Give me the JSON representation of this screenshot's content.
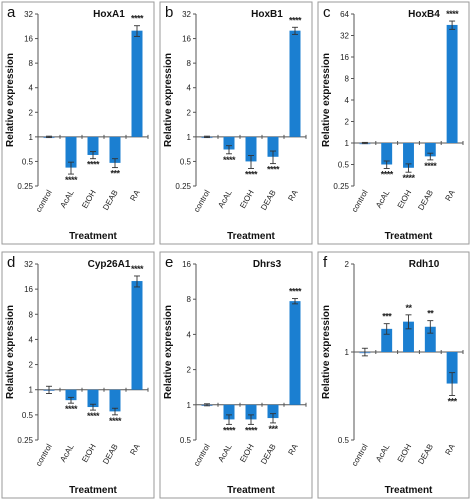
{
  "colors": {
    "bar": "#1b7fd1",
    "control_bar": "#5a8fc8",
    "frame": "#9a9a9a"
  },
  "chart_data": [
    {
      "type": "bar",
      "panel": "a",
      "title": "HoxA1",
      "ylabel": "Relative expression",
      "xlabel": "Treatment",
      "yscale": "log2",
      "ylim": [
        0.25,
        32
      ],
      "yticks": [
        0.25,
        0.5,
        1,
        2,
        4,
        8,
        16,
        32
      ],
      "ytick_labels": [
        "0.25",
        "0.5",
        "1",
        "2",
        "4",
        "8",
        "16",
        "32"
      ],
      "categories": [
        "control",
        "AcAL",
        "EtOH",
        "DEAB",
        "RA"
      ],
      "values": [
        1.0,
        0.42,
        0.6,
        0.48,
        20.0
      ],
      "errors": [
        0.02,
        0.07,
        0.06,
        0.06,
        3.0
      ],
      "significance": [
        "",
        "****",
        "****",
        "***",
        "****"
      ],
      "grid": false,
      "legend": "none"
    },
    {
      "type": "bar",
      "panel": "b",
      "title": "HoxB1",
      "ylabel": "Relative expression",
      "xlabel": "Treatment",
      "yscale": "log2",
      "ylim": [
        0.25,
        32
      ],
      "yticks": [
        0.25,
        0.5,
        1,
        2,
        4,
        8,
        16,
        32
      ],
      "ytick_labels": [
        "0.25",
        "0.5",
        "1",
        "2",
        "4",
        "8",
        "16",
        "32"
      ],
      "categories": [
        "control",
        "AcAL",
        "EtOH",
        "DEAB",
        "RA"
      ],
      "values": [
        1.0,
        0.7,
        0.5,
        0.57,
        20.0
      ],
      "errors": [
        0.02,
        0.08,
        0.09,
        0.1,
        2.0
      ],
      "significance": [
        "",
        "****",
        "****",
        "****",
        "****"
      ],
      "grid": false,
      "legend": "none"
    },
    {
      "type": "bar",
      "panel": "c",
      "title": "HoxB4",
      "ylabel": "Relative expression",
      "xlabel": "Treatment",
      "yscale": "log2",
      "ylim": [
        0.25,
        64
      ],
      "yticks": [
        0.25,
        0.5,
        1,
        2,
        4,
        8,
        16,
        32,
        64
      ],
      "ytick_labels": [
        "0.25",
        "0.5",
        "1",
        "2",
        "4",
        "8",
        "16",
        "32",
        "64"
      ],
      "categories": [
        "control",
        "AcAL",
        "EtOH",
        "DEAB",
        "RA"
      ],
      "values": [
        1.0,
        0.5,
        0.45,
        0.65,
        45.0
      ],
      "errors": [
        0.02,
        0.06,
        0.06,
        0.07,
        6.0
      ],
      "significance": [
        "",
        "****",
        "****",
        "****",
        "****"
      ],
      "grid": false,
      "legend": "none"
    },
    {
      "type": "bar",
      "panel": "d",
      "title": "Cyp26A1",
      "ylabel": "Relative expression",
      "xlabel": "Treatment",
      "yscale": "log2",
      "ylim": [
        0.25,
        32
      ],
      "yticks": [
        0.25,
        0.5,
        1,
        2,
        4,
        8,
        16,
        32
      ],
      "ytick_labels": [
        "0.25",
        "0.5",
        "1",
        "2",
        "4",
        "8",
        "16",
        "32"
      ],
      "categories": [
        "control",
        "AcAL",
        "EtOH",
        "DEAB",
        "RA"
      ],
      "values": [
        1.0,
        0.75,
        0.62,
        0.55,
        20.0
      ],
      "errors": [
        0.1,
        0.06,
        0.05,
        0.05,
        3.0
      ],
      "significance": [
        "",
        "****",
        "****",
        "****",
        "****"
      ],
      "grid": false,
      "legend": "none"
    },
    {
      "type": "bar",
      "panel": "e",
      "title": "Dhrs3",
      "ylabel": "Relative expression",
      "xlabel": "Treatment",
      "yscale": "log2",
      "ylim": [
        0.5,
        16
      ],
      "yticks": [
        0.5,
        1,
        2,
        4,
        8,
        16
      ],
      "ytick_labels": [
        "0.5",
        "1",
        "2",
        "4",
        "8",
        "16"
      ],
      "categories": [
        "control",
        "AcAL",
        "EtOH",
        "DEAB",
        "RA"
      ],
      "values": [
        1.0,
        0.75,
        0.75,
        0.77,
        7.7
      ],
      "errors": [
        0.02,
        0.07,
        0.07,
        0.07,
        0.4
      ],
      "significance": [
        "",
        "****",
        "****",
        "***",
        "****"
      ],
      "grid": false,
      "legend": "none"
    },
    {
      "type": "bar",
      "panel": "f",
      "title": "Rdh10",
      "ylabel": "Relative expression",
      "xlabel": "Treatment",
      "yscale": "log2",
      "ylim": [
        0.5,
        2
      ],
      "yticks": [
        0.5,
        1,
        2
      ],
      "ytick_labels": [
        "0.5",
        "1",
        "2"
      ],
      "categories": [
        "control",
        "AcAL",
        "EtOH",
        "DEAB",
        "RA"
      ],
      "values": [
        1.0,
        1.2,
        1.27,
        1.22,
        0.78
      ],
      "errors": [
        0.03,
        0.05,
        0.07,
        0.06,
        0.07
      ],
      "significance": [
        "",
        "***",
        "**",
        "**",
        "***"
      ],
      "grid": false,
      "legend": "none"
    }
  ]
}
